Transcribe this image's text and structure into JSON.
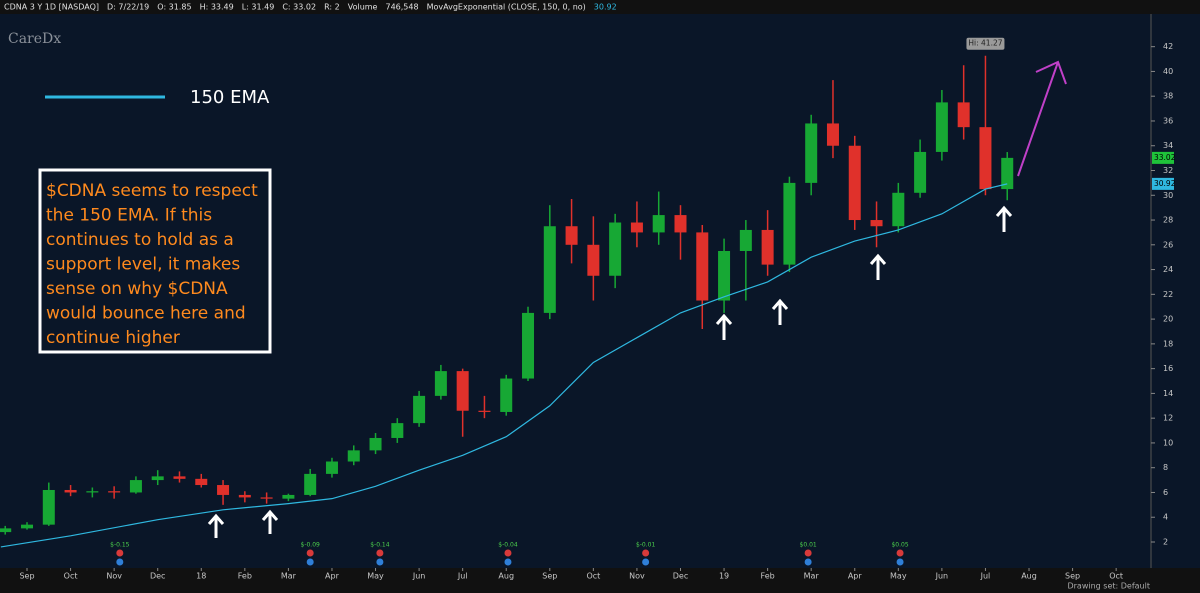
{
  "chart_data": {
    "type": "candlestick",
    "header": [
      "CDNA 3 Y 1D [NASDAQ]",
      "D: 7/22/19",
      "O: 31.85",
      "H: 33.49",
      "L: 31.49",
      "C: 33.02",
      "R: 2",
      "Volume",
      "746,548",
      "MovAvgExponential (CLOSE, 150, 0, no)",
      "30.92"
    ],
    "logo": "CareDx",
    "legend": {
      "name": "150 EMA",
      "color": "#2fb8e0"
    },
    "annotation": [
      "$CDNA seems to respect",
      "the 150 EMA. If this",
      "continues to hold as a",
      "support level, it makes",
      "sense on why $CDNA",
      "would bounce here and",
      "continue higher"
    ],
    "hi_label": "Hi: 41.27",
    "footer": "Drawing set: Default",
    "up_color": "#17a834",
    "down_color": "#e0312b",
    "x": [
      -0.5,
      0,
      0.5,
      1,
      1.5,
      2,
      2.5,
      3,
      3.5,
      4,
      4.5,
      5,
      5.5,
      6,
      6.5,
      7,
      7.5,
      8,
      8.5,
      9,
      9.5,
      10,
      10.5,
      11,
      11.5,
      12,
      12.5,
      13,
      13.5,
      14,
      14.5,
      15,
      15.5,
      16,
      16.5,
      17,
      17.5,
      18,
      18.5,
      19,
      19.5,
      20,
      20.5,
      21,
      21.5,
      22,
      22.5
    ],
    "open": [
      2.8,
      3.1,
      3.4,
      6.2,
      6.0,
      6.1,
      6.0,
      7.0,
      7.3,
      7.1,
      6.6,
      5.8,
      5.6,
      5.5,
      5.8,
      7.5,
      8.5,
      9.4,
      10.4,
      11.6,
      13.8,
      15.8,
      12.6,
      12.5,
      15.2,
      20.5,
      27.5,
      26.0,
      23.5,
      27.8,
      27.0,
      28.4,
      27.0,
      21.5,
      25.5,
      27.2,
      24.4,
      31.0,
      35.8,
      34.0,
      28.0,
      27.5,
      30.2,
      33.5,
      37.5,
      35.5,
      30.5
    ],
    "high": [
      3.3,
      3.6,
      6.8,
      6.6,
      6.4,
      6.5,
      7.3,
      7.8,
      7.7,
      7.5,
      7.0,
      6.1,
      6.0,
      5.9,
      7.9,
      8.8,
      9.8,
      10.8,
      12.0,
      14.2,
      16.3,
      16.0,
      13.8,
      15.5,
      21.0,
      29.2,
      29.7,
      28.3,
      28.5,
      29.5,
      30.3,
      29.2,
      27.6,
      26.5,
      28.0,
      28.8,
      31.5,
      36.5,
      39.3,
      34.8,
      29.5,
      31.0,
      34.5,
      38.5,
      40.5,
      41.27,
      33.49
    ],
    "low": [
      2.6,
      3.0,
      3.3,
      5.7,
      5.6,
      5.5,
      5.9,
      6.6,
      6.8,
      6.4,
      5.0,
      5.2,
      5.1,
      5.3,
      5.7,
      7.2,
      8.2,
      9.1,
      10.0,
      11.3,
      13.5,
      10.5,
      12.0,
      12.2,
      15.0,
      20.0,
      24.5,
      21.5,
      22.5,
      25.8,
      26.0,
      24.8,
      19.2,
      20.5,
      21.5,
      23.5,
      23.8,
      30.0,
      33.0,
      27.2,
      25.8,
      27.0,
      29.8,
      32.8,
      34.5,
      30.0,
      29.6
    ],
    "close": [
      3.1,
      3.4,
      6.2,
      6.0,
      6.1,
      6.0,
      7.0,
      7.3,
      7.1,
      6.6,
      5.8,
      5.6,
      5.5,
      5.8,
      7.5,
      8.5,
      9.4,
      10.4,
      11.6,
      13.8,
      15.8,
      12.6,
      12.5,
      15.2,
      20.5,
      27.5,
      26.0,
      23.5,
      27.8,
      27.0,
      28.4,
      27.0,
      21.5,
      25.5,
      27.2,
      24.4,
      31.0,
      35.8,
      34.0,
      28.0,
      27.5,
      30.2,
      33.5,
      37.5,
      35.5,
      30.5,
      33.02
    ],
    "ema": {
      "x": [
        -0.6,
        1,
        3,
        4.5,
        6,
        7,
        8,
        9,
        10,
        11,
        12,
        13,
        14,
        15,
        16,
        17,
        18,
        19,
        20,
        21,
        22,
        22.5
      ],
      "values": [
        1.6,
        2.5,
        3.8,
        4.6,
        5.1,
        5.5,
        6.5,
        7.8,
        9.0,
        10.5,
        13.0,
        16.5,
        18.5,
        20.5,
        21.8,
        23.0,
        25.0,
        26.3,
        27.2,
        28.5,
        30.5,
        30.92
      ]
    },
    "earnings": [
      {
        "x": 2.13,
        "label": "$-0.15"
      },
      {
        "x": 6.5,
        "label": "$-0.09"
      },
      {
        "x": 8.1,
        "label": "$-0.14"
      },
      {
        "x": 11.04,
        "label": "$-0.04"
      },
      {
        "x": 14.2,
        "label": "$-0.01"
      },
      {
        "x": 17.93,
        "label": "$0.01"
      },
      {
        "x": 20.04,
        "label": "$0.05"
      }
    ],
    "xlim": [
      -0.62,
      25.8
    ],
    "xticks": [
      {
        "value": 0,
        "label": "Sep"
      },
      {
        "value": 1,
        "label": "Oct"
      },
      {
        "value": 2,
        "label": "Nov"
      },
      {
        "value": 3,
        "label": "Dec"
      },
      {
        "value": 4,
        "label": "18"
      },
      {
        "value": 5,
        "label": "Feb"
      },
      {
        "value": 6,
        "label": "Mar"
      },
      {
        "value": 7,
        "label": "Apr"
      },
      {
        "value": 8,
        "label": "May"
      },
      {
        "value": 9,
        "label": "Jun"
      },
      {
        "value": 10,
        "label": "Jul"
      },
      {
        "value": 11,
        "label": "Aug"
      },
      {
        "value": 12,
        "label": "Sep"
      },
      {
        "value": 13,
        "label": "Oct"
      },
      {
        "value": 14,
        "label": "Nov"
      },
      {
        "value": 15,
        "label": "Dec"
      },
      {
        "value": 16,
        "label": "19"
      },
      {
        "value": 17,
        "label": "Feb"
      },
      {
        "value": 18,
        "label": "Mar"
      },
      {
        "value": 19,
        "label": "Apr"
      },
      {
        "value": 20,
        "label": "May"
      },
      {
        "value": 21,
        "label": "Jun"
      },
      {
        "value": 22,
        "label": "Jul"
      },
      {
        "value": 23,
        "label": "Aug"
      },
      {
        "value": 24,
        "label": "Sep"
      },
      {
        "value": 25,
        "label": "Oct"
      }
    ],
    "ylim": [
      -0.1,
      44.8
    ],
    "yticks": [
      2,
      4,
      6,
      8,
      10,
      12,
      14,
      16,
      18,
      20,
      22,
      24,
      26,
      28,
      30,
      32,
      34,
      36,
      38,
      40,
      42
    ]
  }
}
